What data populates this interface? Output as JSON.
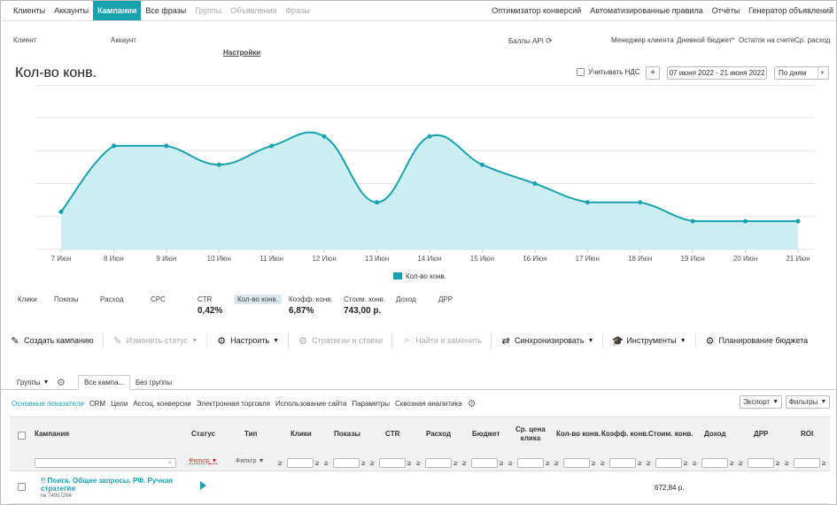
{
  "nav": {
    "left": [
      {
        "label": "Клиенты",
        "state": "normal"
      },
      {
        "label": "Аккаунты",
        "state": "normal"
      },
      {
        "label": "Кампании",
        "state": "active"
      },
      {
        "label": "Все фразы",
        "state": "normal"
      },
      {
        "label": "Группы",
        "state": "disabled"
      },
      {
        "label": "Объявления",
        "state": "disabled"
      },
      {
        "label": "Фразы",
        "state": "disabled"
      }
    ],
    "right": [
      {
        "label": "Оптимизатор конверсий"
      },
      {
        "label": "Автоматизированные правила"
      },
      {
        "label": "Отчёты"
      },
      {
        "label": "Генератор объявлений"
      }
    ]
  },
  "info": {
    "client": "Клиент",
    "account": "Аккаунт",
    "api_points": "Баллы API",
    "manager": "Менеджер клиента",
    "daily_budget": "Дневной бюджет*",
    "balance": "Остаток на счете",
    "avg_spend": "Ср. расход",
    "settings": "Настройки"
  },
  "chart_header": {
    "title": "Кол-во конв.",
    "vat_label": "Учитывать НДС",
    "add_label": "+",
    "date_range": "07 июня 2022 - 21 июня 2022",
    "group_by": "По дням"
  },
  "chart_data": {
    "type": "area",
    "categories": [
      "7 Июн",
      "8 Июн",
      "9 Июн",
      "10 Июн",
      "11 Июн",
      "12 Июн",
      "13 Июн",
      "14 Июн",
      "15 Июн",
      "16 Июн",
      "17 Июн",
      "18 Июн",
      "19 Июн",
      "20 Июн",
      "21 Июн"
    ],
    "series": [
      {
        "name": "Кол-во конв.",
        "values": [
          1.0,
          4.5,
          4.5,
          3.5,
          4.5,
          5.0,
          1.5,
          5.0,
          3.5,
          2.5,
          1.5,
          1.5,
          0.5,
          0.5,
          0.5
        ]
      }
    ],
    "ylim": [
      -1,
      6
    ],
    "grid": true,
    "legend": "bottom",
    "color": "#17a2b0",
    "fill": "#cdeef0"
  },
  "metrics": [
    {
      "label": "Клики",
      "value": ""
    },
    {
      "label": "Показы",
      "value": ""
    },
    {
      "label": "Расход",
      "value": ""
    },
    {
      "label": "CPC",
      "value": ""
    },
    {
      "label": "CTR",
      "value": "0,42%"
    },
    {
      "label": "Кол-во конв.",
      "value": ""
    },
    {
      "label": "Коэфф. конв.",
      "value": "6,87%"
    },
    {
      "label": "Стоим. конв.",
      "value": "743,00 р."
    },
    {
      "label": "Доход",
      "value": ""
    },
    {
      "label": "ДРР",
      "value": ""
    }
  ],
  "toolbar": [
    {
      "label": "Создать кампанию",
      "icon": "pencil-icon",
      "caret": false,
      "disabled": false
    },
    {
      "label": "Изменить статус",
      "icon": "edit-icon",
      "caret": true,
      "disabled": true
    },
    {
      "label": "Настроить",
      "icon": "gear-icon",
      "caret": true,
      "disabled": false
    },
    {
      "label": "Стратегии и ставки",
      "icon": "gear-icon",
      "caret": false,
      "disabled": true
    },
    {
      "label": "Найти и заменить",
      "icon": "search-icon",
      "caret": false,
      "disabled": true
    },
    {
      "label": "Синхронизировать",
      "icon": "sync-icon",
      "caret": true,
      "disabled": false
    },
    {
      "label": "Инструменты",
      "icon": "graduation-cap-icon",
      "caret": true,
      "disabled": false
    },
    {
      "label": "Планирование бюджета",
      "icon": "gear-icon",
      "caret": false,
      "disabled": false
    }
  ],
  "subtabs": {
    "groups": "Группы",
    "all_campaigns": "Все кампа...",
    "no_group": "Без группы"
  },
  "indicators": [
    "Основные показатели",
    "CRM",
    "Цели",
    "Ассоц. конверсии",
    "Электронная торговля",
    "Использование сайта",
    "Параметры",
    "Сквозная аналитика"
  ],
  "export_label": "Экспорт",
  "filters_label": "Фильтры",
  "table": {
    "headers": {
      "campaign": "Кампания",
      "status": "Статус",
      "type": "Тип",
      "clicks": "Клики",
      "impressions": "Показы",
      "ctr": "CTR",
      "spend": "Расход",
      "budget": "Бюджет",
      "avg_click_l1": "Ср. цена",
      "avg_click_l2": "клика",
      "conv": "Кол-во конв.",
      "conv_rate": "Коэфф. конв.",
      "conv_cost": "Стоим. конв.",
      "revenue": "Доход",
      "drr": "ДРР",
      "roi": "ROI"
    },
    "status_filter": "Фильтр",
    "type_filter": "Фильтр",
    "ge": "≥",
    "row": {
      "name_l1": "!! Поиск. Общие запросы. РФ. Ручная",
      "name_l2": "стратегия",
      "id": "№ 74957264",
      "conv_cost": "672,84 р."
    }
  }
}
